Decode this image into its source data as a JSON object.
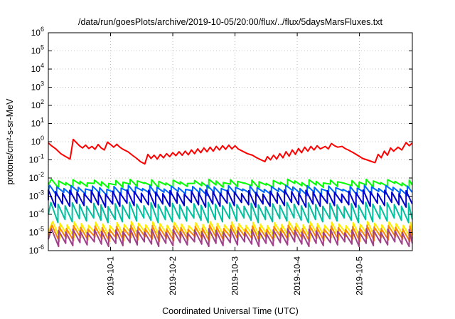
{
  "chart_data": {
    "type": "line",
    "title": "/data/run/goesPlots/archive/2019-10-05/20:00/flux/../flux/5daysMarsFluxes.txt",
    "xlabel": "Coordinated Universal Time (UTC)",
    "ylabel": "protons/cm²-s-sr-MeV",
    "yscale": "log",
    "ylim": [
      1e-06,
      1000000.0
    ],
    "xlim": [
      0,
      5.85
    ],
    "grid": true,
    "y_ticks": [
      {
        "value": 1e-06,
        "base": "10",
        "exp": "-6"
      },
      {
        "value": 1e-05,
        "base": "10",
        "exp": "-5"
      },
      {
        "value": 0.0001,
        "base": "10",
        "exp": "-4"
      },
      {
        "value": 0.001,
        "base": "10",
        "exp": "-3"
      },
      {
        "value": 0.01,
        "base": "10",
        "exp": "-2"
      },
      {
        "value": 0.1,
        "base": "10",
        "exp": "-1"
      },
      {
        "value": 1,
        "base": "10",
        "exp": "0"
      },
      {
        "value": 10,
        "base": "10",
        "exp": "1"
      },
      {
        "value": 100,
        "base": "10",
        "exp": "2"
      },
      {
        "value": 1000,
        "base": "10",
        "exp": "3"
      },
      {
        "value": 10000,
        "base": "10",
        "exp": "4"
      },
      {
        "value": 100000,
        "base": "10",
        "exp": "5"
      },
      {
        "value": 1000000,
        "base": "10",
        "exp": "6"
      }
    ],
    "x_ticks": [
      {
        "value": 1,
        "label": "2019-10-1"
      },
      {
        "value": 2,
        "label": "2019-10-2"
      },
      {
        "value": 3,
        "label": "2019-10-3"
      },
      {
        "value": 4,
        "label": "2019-10-4"
      },
      {
        "value": 5,
        "label": "2019-10-5"
      }
    ],
    "series": [
      {
        "color": "#ff0000",
        "values": [
          [
            0.0,
            0.85
          ],
          [
            0.05,
            0.6
          ],
          [
            0.12,
            0.4
          ],
          [
            0.2,
            0.22
          ],
          [
            0.28,
            0.15
          ],
          [
            0.35,
            0.11
          ],
          [
            0.4,
            1.35
          ],
          [
            0.45,
            0.9
          ],
          [
            0.5,
            0.6
          ],
          [
            0.55,
            0.45
          ],
          [
            0.6,
            0.65
          ],
          [
            0.65,
            0.42
          ],
          [
            0.7,
            0.55
          ],
          [
            0.75,
            0.38
          ],
          [
            0.8,
            0.7
          ],
          [
            0.85,
            0.45
          ],
          [
            0.9,
            0.35
          ],
          [
            0.95,
            0.95
          ],
          [
            1.0,
            0.7
          ],
          [
            1.05,
            0.5
          ],
          [
            1.1,
            0.72
          ],
          [
            1.15,
            0.5
          ],
          [
            1.2,
            0.38
          ],
          [
            1.28,
            0.28
          ],
          [
            1.35,
            0.18
          ],
          [
            1.42,
            0.12
          ],
          [
            1.48,
            0.08
          ],
          [
            1.55,
            0.06
          ],
          [
            1.6,
            0.2
          ],
          [
            1.65,
            0.12
          ],
          [
            1.7,
            0.18
          ],
          [
            1.75,
            0.11
          ],
          [
            1.8,
            0.2
          ],
          [
            1.85,
            0.13
          ],
          [
            1.9,
            0.22
          ],
          [
            1.95,
            0.15
          ],
          [
            2.0,
            0.25
          ],
          [
            2.05,
            0.17
          ],
          [
            2.1,
            0.28
          ],
          [
            2.15,
            0.18
          ],
          [
            2.2,
            0.3
          ],
          [
            2.25,
            0.19
          ],
          [
            2.3,
            0.35
          ],
          [
            2.35,
            0.22
          ],
          [
            2.4,
            0.4
          ],
          [
            2.45,
            0.25
          ],
          [
            2.5,
            0.45
          ],
          [
            2.55,
            0.28
          ],
          [
            2.6,
            0.5
          ],
          [
            2.65,
            0.3
          ],
          [
            2.7,
            0.55
          ],
          [
            2.75,
            0.35
          ],
          [
            2.8,
            0.6
          ],
          [
            2.85,
            0.38
          ],
          [
            2.9,
            0.65
          ],
          [
            2.95,
            0.4
          ],
          [
            3.0,
            0.6
          ],
          [
            3.05,
            0.4
          ],
          [
            3.12,
            0.3
          ],
          [
            3.2,
            0.22
          ],
          [
            3.28,
            0.18
          ],
          [
            3.35,
            0.13
          ],
          [
            3.42,
            0.1
          ],
          [
            3.48,
            0.08
          ],
          [
            3.52,
            0.15
          ],
          [
            3.57,
            0.1
          ],
          [
            3.62,
            0.18
          ],
          [
            3.67,
            0.11
          ],
          [
            3.72,
            0.22
          ],
          [
            3.77,
            0.13
          ],
          [
            3.82,
            0.28
          ],
          [
            3.87,
            0.16
          ],
          [
            3.92,
            0.35
          ],
          [
            3.97,
            0.2
          ],
          [
            4.02,
            0.42
          ],
          [
            4.07,
            0.25
          ],
          [
            4.12,
            0.5
          ],
          [
            4.17,
            0.3
          ],
          [
            4.22,
            0.55
          ],
          [
            4.27,
            0.35
          ],
          [
            4.32,
            0.6
          ],
          [
            4.37,
            0.4
          ],
          [
            4.45,
            0.55
          ],
          [
            4.5,
            0.4
          ],
          [
            4.55,
            0.8
          ],
          [
            4.6,
            0.6
          ],
          [
            4.65,
            0.5
          ],
          [
            4.72,
            0.55
          ],
          [
            4.77,
            0.42
          ],
          [
            4.82,
            0.35
          ],
          [
            4.9,
            0.25
          ],
          [
            4.98,
            0.17
          ],
          [
            5.05,
            0.12
          ],
          [
            5.12,
            0.1
          ],
          [
            5.2,
            0.08
          ],
          [
            5.25,
            0.07
          ],
          [
            5.3,
            0.2
          ],
          [
            5.35,
            0.13
          ],
          [
            5.4,
            0.3
          ],
          [
            5.45,
            0.18
          ],
          [
            5.5,
            0.45
          ],
          [
            5.55,
            0.3
          ],
          [
            5.62,
            0.5
          ],
          [
            5.68,
            0.35
          ],
          [
            5.75,
            0.9
          ],
          [
            5.8,
            0.6
          ],
          [
            5.85,
            0.85
          ]
        ]
      },
      {
        "color": "#00ff00",
        "saw": {
          "start": 0.05,
          "period": 0.115,
          "high": 0.0085,
          "low": 0.0028
        }
      },
      {
        "color": "#0066ff",
        "saw": {
          "start": 0.02,
          "period": 0.115,
          "high": 0.004,
          "low": 0.0011
        }
      },
      {
        "color": "#0000cc",
        "saw": {
          "start": 0.0,
          "period": 0.115,
          "high": 0.0022,
          "low": 0.00025
        }
      },
      {
        "color": "#00c0a0",
        "saw": {
          "start": 0.04,
          "period": 0.115,
          "high": 0.00045,
          "low": 3.5e-05
        }
      },
      {
        "color": "#ffee00",
        "saw": {
          "start": 0.07,
          "period": 0.115,
          "high": 4e-05,
          "low": 5e-06
        }
      },
      {
        "color": "#ff8800",
        "saw": {
          "start": 0.06,
          "period": 0.115,
          "high": 2.5e-05,
          "low": 3.2e-06
        }
      },
      {
        "color": "#a0408a",
        "saw": {
          "start": 0.05,
          "period": 0.115,
          "high": 1.6e-05,
          "low": 1.7e-06
        }
      }
    ]
  }
}
